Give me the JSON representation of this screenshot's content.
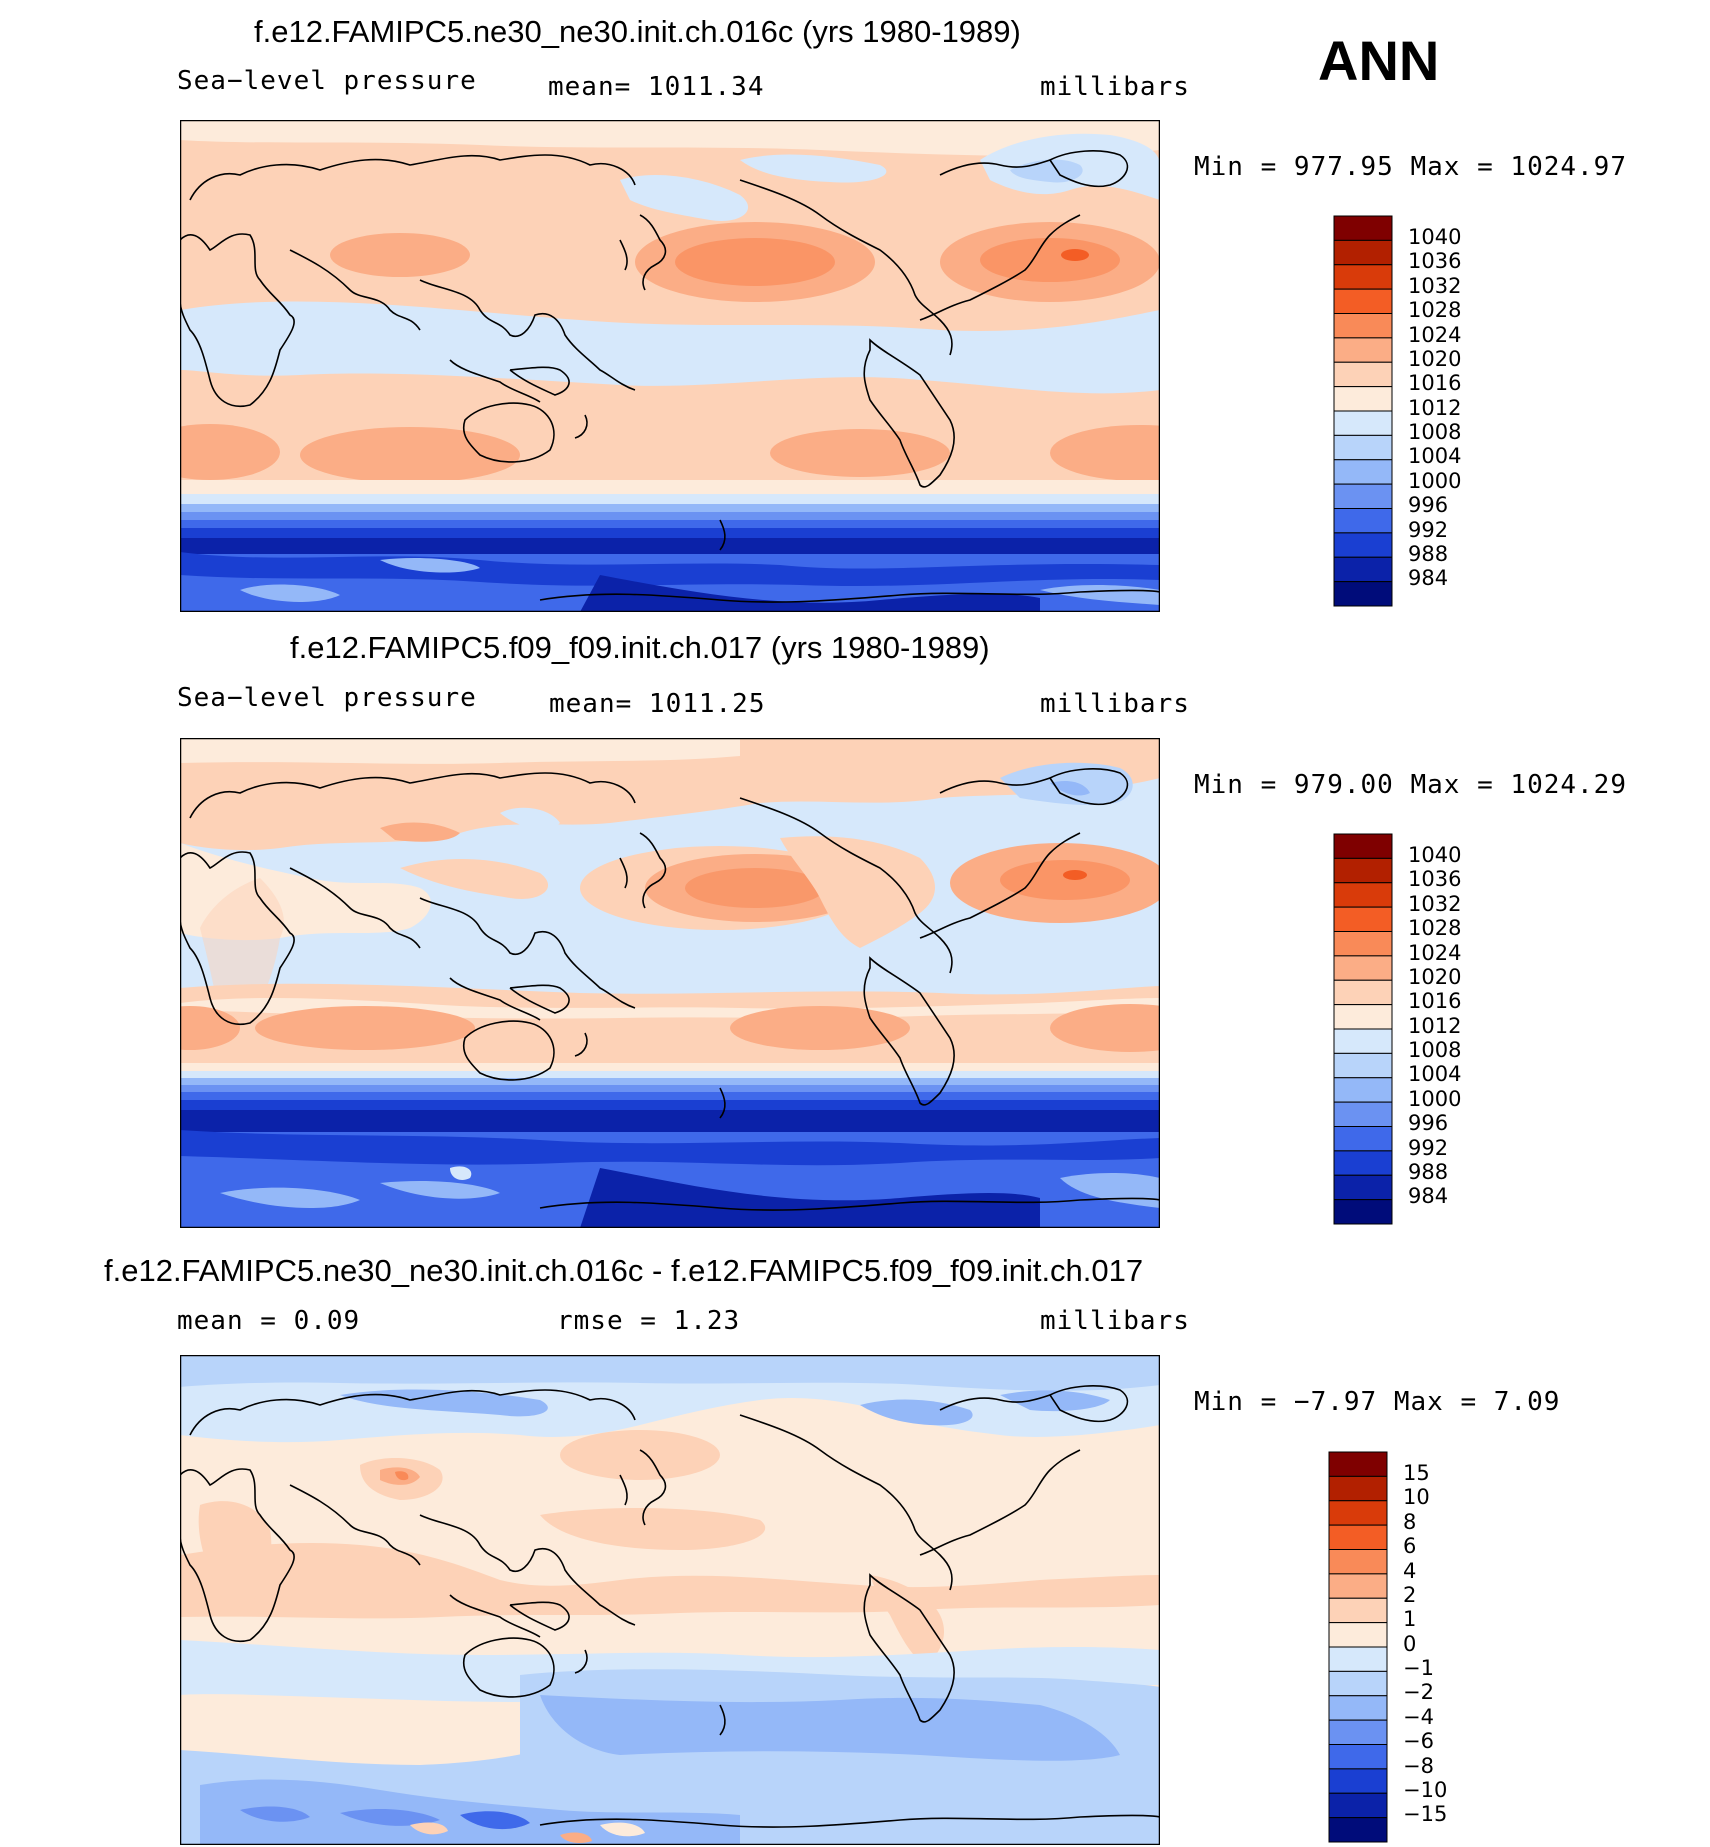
{
  "season_label": "ANN",
  "panels": [
    {
      "title": "f.e12.FAMIPC5.ne30_ne30.init.ch.016c (yrs 1980-1989)",
      "variable": "Sea−level pressure",
      "stat": "mean=  1011.34",
      "units": "millibars",
      "minmax": "Min  =  977.95  Max  =  1024.97",
      "levels": [
        "1040",
        "1036",
        "1032",
        "1028",
        "1024",
        "1020",
        "1016",
        "1012",
        "1008",
        "1004",
        "1000",
        "996",
        "992",
        "988",
        "984"
      ],
      "colors": [
        "#7f0000",
        "#b22000",
        "#d93b0a",
        "#f35d25",
        "#f98a58",
        "#fbad86",
        "#fdd2b7",
        "#fdebdb",
        "#d6e8fb",
        "#b8d4fa",
        "#94b8f8",
        "#6b92f2",
        "#3f69ea",
        "#1a3fd2",
        "#0b22a9",
        "#000c7a"
      ]
    },
    {
      "title": "f.e12.FAMIPC5.f09_f09.init.ch.017 (yrs 1980-1989)",
      "variable": "Sea−level pressure",
      "stat": "mean=  1011.25",
      "units": "millibars",
      "minmax": "Min  =  979.00  Max  =  1024.29",
      "levels": [
        "1040",
        "1036",
        "1032",
        "1028",
        "1024",
        "1020",
        "1016",
        "1012",
        "1008",
        "1004",
        "1000",
        "996",
        "992",
        "988",
        "984"
      ],
      "colors": [
        "#7f0000",
        "#b22000",
        "#d93b0a",
        "#f35d25",
        "#f98a58",
        "#fbad86",
        "#fdd2b7",
        "#fdebdb",
        "#d6e8fb",
        "#b8d4fa",
        "#94b8f8",
        "#6b92f2",
        "#3f69ea",
        "#1a3fd2",
        "#0b22a9",
        "#000c7a"
      ]
    },
    {
      "title": "f.e12.FAMIPC5.ne30_ne30.init.ch.016c - f.e12.FAMIPC5.f09_f09.init.ch.017",
      "variable": "mean =     0.09",
      "stat": "rmse =     1.23",
      "units": "millibars",
      "minmax": "Min  =   −7.97  Max  =     7.09",
      "levels": [
        "15",
        "10",
        "8",
        "6",
        "4",
        "2",
        "1",
        "0",
        "−1",
        "−2",
        "−4",
        "−6",
        "−8",
        "−10",
        "−15"
      ],
      "colors": [
        "#7f0000",
        "#b22000",
        "#d93b0a",
        "#f35d25",
        "#f98a58",
        "#fbad86",
        "#fdd2b7",
        "#fdebdb",
        "#d6e8fb",
        "#b8d4fa",
        "#94b8f8",
        "#6b92f2",
        "#3f69ea",
        "#1a3fd2",
        "#0b22a9",
        "#000c7a"
      ]
    }
  ]
}
